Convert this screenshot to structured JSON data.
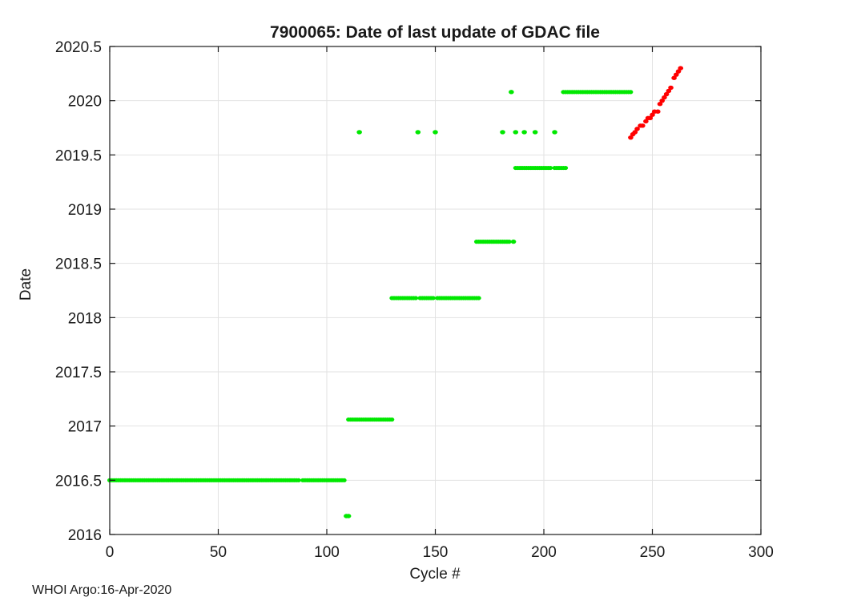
{
  "figure": {
    "background": "#ffffff",
    "footer_text": "WHOI Argo:16-Apr-2020"
  },
  "chart_data": {
    "type": "scatter",
    "title": "7900065: Date of last update of GDAC file",
    "xlabel": "Cycle #",
    "ylabel": "Date",
    "xlim": [
      0,
      300
    ],
    "ylim": [
      2016,
      2020.5
    ],
    "xticks": [
      0,
      50,
      100,
      150,
      200,
      250,
      300
    ],
    "xtick_labels": [
      "0",
      "50",
      "100",
      "150",
      "200",
      "250",
      "300"
    ],
    "yticks": [
      2016,
      2016.5,
      2017,
      2017.5,
      2018,
      2018.5,
      2019,
      2019.5,
      2020,
      2020.5
    ],
    "ytick_labels": [
      "2016",
      "2016.5",
      "2017",
      "2017.5",
      "2018",
      "2018.5",
      "2019",
      "2019.5",
      "2020",
      "2020.5"
    ],
    "grid": true,
    "grid_color": "#e2e2e2",
    "axis_color": "#1a1a1a",
    "legend": "none",
    "series": [
      {
        "name": "gdac-file-update-green",
        "color": "#00e800",
        "marker": "dot",
        "runs": [
          [
            0,
            87,
            2016.5
          ],
          [
            89,
            108,
            2016.5
          ],
          [
            110,
            115,
            2017.06
          ],
          [
            116,
            121,
            2017.06
          ],
          [
            122,
            130,
            2017.06
          ],
          [
            130,
            141,
            2018.18
          ],
          [
            143,
            149,
            2018.18
          ],
          [
            151,
            170,
            2018.18
          ],
          [
            169,
            181,
            2018.7
          ],
          [
            182,
            184,
            2018.7
          ],
          [
            187,
            193,
            2019.38
          ],
          [
            194,
            203,
            2019.38
          ],
          [
            205,
            210,
            2019.38
          ],
          [
            209,
            240,
            2020.08
          ]
        ],
        "points": [
          [
            109,
            2016.17
          ],
          [
            110,
            2016.17
          ],
          [
            186,
            2018.7
          ],
          [
            115,
            2019.71
          ],
          [
            142,
            2019.71
          ],
          [
            150,
            2019.71
          ],
          [
            181,
            2019.71
          ],
          [
            187,
            2019.71
          ],
          [
            191,
            2019.71
          ],
          [
            196,
            2019.71
          ],
          [
            205,
            2019.71
          ],
          [
            185,
            2020.08
          ]
        ]
      },
      {
        "name": "recent-update-red",
        "color": "#ff0000",
        "marker": "dot",
        "runs": [],
        "points": [
          [
            240,
            2019.66
          ],
          [
            241,
            2019.69
          ],
          [
            242,
            2019.71
          ],
          [
            243,
            2019.74
          ],
          [
            244.5,
            2019.77
          ],
          [
            245.5,
            2019.77
          ],
          [
            247,
            2019.81
          ],
          [
            248,
            2019.84
          ],
          [
            249,
            2019.84
          ],
          [
            250,
            2019.87
          ],
          [
            251,
            2019.9
          ],
          [
            252.5,
            2019.9
          ],
          [
            253.5,
            2019.97
          ],
          [
            254.5,
            2020.0
          ],
          [
            255.5,
            2020.03
          ],
          [
            256.5,
            2020.06
          ],
          [
            257.5,
            2020.09
          ],
          [
            258.5,
            2020.12
          ],
          [
            260,
            2020.21
          ],
          [
            261,
            2020.24
          ],
          [
            262,
            2020.27
          ],
          [
            263,
            2020.3
          ]
        ]
      }
    ]
  }
}
